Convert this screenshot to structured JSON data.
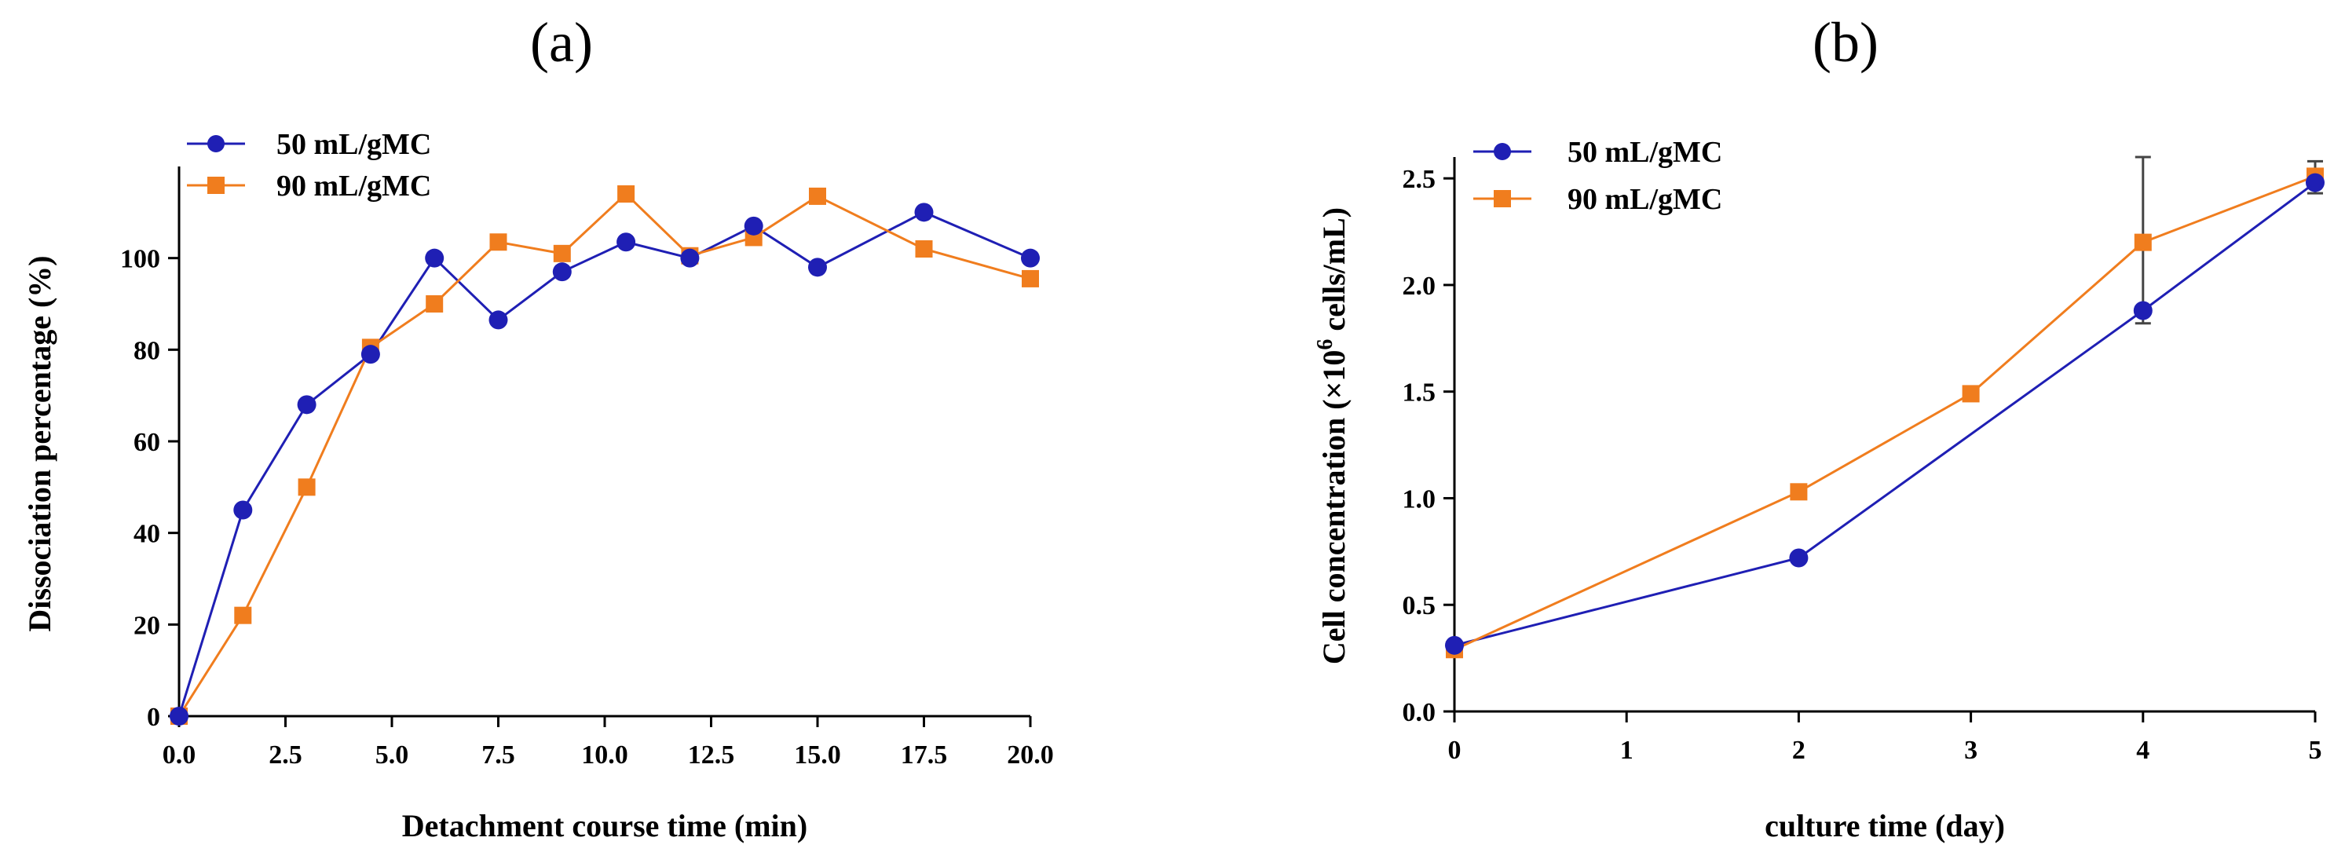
{
  "chart_data": [
    {
      "type": "line",
      "panel_label": "(a)",
      "xlabel": "Detachment course time (min)",
      "ylabel": "Dissociation percentage (%)",
      "xlim": [
        0,
        20
      ],
      "ylim": [
        0,
        120
      ],
      "xticks": [
        "0.0",
        "2.5",
        "5.0",
        "7.5",
        "10.0",
        "12.5",
        "15.0",
        "17.5",
        "20.0"
      ],
      "xtick_values": [
        0,
        2.5,
        5,
        7.5,
        10,
        12.5,
        15,
        17.5,
        20
      ],
      "yticks": [
        "0",
        "20",
        "40",
        "60",
        "80",
        "100"
      ],
      "ytick_values": [
        0,
        20,
        40,
        60,
        80,
        100
      ],
      "legend_position": "top-left",
      "series": [
        {
          "name": "50 mL/gMC",
          "color": "#1f1fb4",
          "marker": "circle",
          "x": [
            0,
            1.5,
            3,
            4.5,
            6,
            7.5,
            9,
            10.5,
            12,
            13.5,
            15,
            17.5,
            20
          ],
          "y": [
            0,
            45,
            68,
            79,
            100,
            86.5,
            97,
            103.5,
            100,
            107,
            98,
            110,
            100
          ]
        },
        {
          "name": "90 mL/gMC",
          "color": "#f07d1e",
          "marker": "square",
          "x": [
            0,
            1.5,
            3,
            4.5,
            6,
            7.5,
            9,
            10.5,
            12,
            13.5,
            15,
            17.5,
            20
          ],
          "y": [
            0,
            22,
            50,
            80.5,
            90,
            103.5,
            101,
            114,
            100.5,
            104.5,
            113.5,
            102,
            95.5
          ]
        }
      ]
    },
    {
      "type": "line",
      "panel_label": "(b)",
      "xlabel": "culture time (day)",
      "ylabel_prefix": "Cell concentration (×10",
      "ylabel_sup": "6",
      "ylabel_suffix": " cells/mL)",
      "xlim": [
        0,
        5
      ],
      "ylim": [
        0,
        2.6
      ],
      "xticks": [
        "0",
        "1",
        "2",
        "3",
        "4",
        "5"
      ],
      "xtick_values": [
        0,
        1,
        2,
        3,
        4,
        5
      ],
      "yticks": [
        "0.0",
        "0.5",
        "1.0",
        "1.5",
        "2.0",
        "2.5"
      ],
      "ytick_values": [
        0,
        0.5,
        1.0,
        1.5,
        2.0,
        2.5
      ],
      "legend_position": "top-left",
      "series": [
        {
          "name": "50 mL/gMC",
          "color": "#1f1fb4",
          "marker": "circle",
          "x": [
            0,
            2,
            4,
            5
          ],
          "y": [
            0.31,
            0.72,
            1.88,
            2.48
          ],
          "err_low": [
            0,
            0,
            0.06,
            0.05
          ],
          "err_high": [
            0,
            0,
            0.72,
            0.1
          ],
          "marker_visible": [
            true,
            true,
            true,
            true
          ],
          "path_x": [
            0,
            2,
            3,
            4,
            5
          ],
          "path_y": [
            0.31,
            0.72,
            1.3,
            1.88,
            2.48
          ]
        },
        {
          "name": "90 mL/gMC",
          "color": "#f07d1e",
          "marker": "square",
          "x": [
            0,
            2,
            3,
            4,
            5
          ],
          "y": [
            0.29,
            1.03,
            1.49,
            2.2,
            2.51
          ],
          "err_low": [
            0,
            0,
            0,
            0,
            0
          ],
          "err_high": [
            0,
            0,
            0,
            0,
            0
          ]
        }
      ]
    }
  ]
}
